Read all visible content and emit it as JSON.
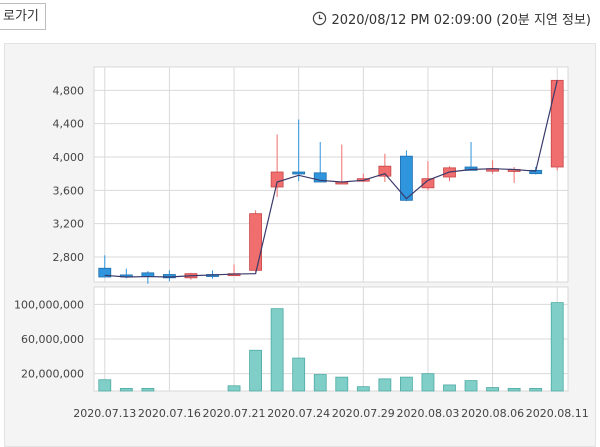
{
  "header": {
    "back_label": "로가기",
    "timestamp": "2020/08/12 PM 02:09:00 (20분 지연 정보)",
    "clock_icon": "clock-icon"
  },
  "colors": {
    "up": "#f06e6e",
    "down": "#2f95dc",
    "volume": "#7fcfc8",
    "ma_line": "#3a3a6a",
    "grid": "#d9d9d9"
  },
  "chart_data": [
    {
      "type": "candlestick",
      "title": "",
      "ylim": [
        2500,
        5080
      ],
      "y_ticks": [
        2800,
        3200,
        3600,
        4000,
        4400,
        4800
      ],
      "y_tick_labels": [
        "2,800",
        "3,200",
        "3,600",
        "4,000",
        "4,400",
        "4,800"
      ],
      "x_tick_labels": [
        "2020.07.13",
        "2020.07.16",
        "2020.07.21",
        "2020.07.24",
        "2020.07.29",
        "2020.08.03",
        "2020.08.06",
        "2020.08.11"
      ],
      "x_tick_indices": [
        0,
        3,
        6,
        9,
        12,
        15,
        18,
        21
      ],
      "series": [
        {
          "candles": [
            {
              "open": 2665,
              "high": 2820,
              "low": 2565,
              "close": 2560
            },
            {
              "open": 2585,
              "high": 2660,
              "low": 2545,
              "close": 2575
            },
            {
              "open": 2610,
              "high": 2630,
              "low": 2480,
              "close": 2565
            },
            {
              "open": 2590,
              "high": 2640,
              "low": 2510,
              "close": 2550
            },
            {
              "open": 2550,
              "high": 2610,
              "low": 2530,
              "close": 2600
            },
            {
              "open": 2590,
              "high": 2640,
              "low": 2540,
              "close": 2585
            },
            {
              "open": 2590,
              "high": 2710,
              "low": 2580,
              "close": 2600
            },
            {
              "open": 2640,
              "high": 3360,
              "low": 2620,
              "close": 3320
            },
            {
              "open": 3640,
              "high": 4270,
              "low": 3520,
              "close": 3820
            },
            {
              "open": 3820,
              "high": 4450,
              "low": 3710,
              "close": 3800
            },
            {
              "open": 3810,
              "high": 4180,
              "low": 3700,
              "close": 3700
            },
            {
              "open": 3700,
              "high": 4150,
              "low": 3690,
              "close": 3700
            },
            {
              "open": 3710,
              "high": 3800,
              "low": 3700,
              "close": 3740
            },
            {
              "open": 3770,
              "high": 4040,
              "low": 3700,
              "close": 3890
            },
            {
              "open": 4010,
              "high": 4080,
              "low": 3470,
              "close": 3480
            },
            {
              "open": 3630,
              "high": 3950,
              "low": 3600,
              "close": 3740
            },
            {
              "open": 3760,
              "high": 3890,
              "low": 3710,
              "close": 3870
            },
            {
              "open": 3880,
              "high": 4180,
              "low": 3850,
              "close": 3840
            },
            {
              "open": 3830,
              "high": 3960,
              "low": 3800,
              "close": 3860
            },
            {
              "open": 3850,
              "high": 3880,
              "low": 3690,
              "close": 3850
            },
            {
              "open": 3840,
              "high": 3880,
              "low": 3790,
              "close": 3800
            },
            {
              "open": 3880,
              "high": 4920,
              "low": 3840,
              "close": 4920
            }
          ],
          "moving_average": [
            2580,
            2560,
            2565,
            2560,
            2575,
            2585,
            2595,
            2600,
            3700,
            3780,
            3720,
            3700,
            3720,
            3800,
            3500,
            3720,
            3820,
            3850,
            3860,
            3850,
            3830,
            4920
          ]
        }
      ]
    },
    {
      "type": "bar",
      "title": "",
      "ylim": [
        0,
        120000000
      ],
      "y_ticks": [
        20000000,
        60000000,
        100000000
      ],
      "y_tick_labels": [
        "20,000,000",
        "60,000,000",
        "100,000,000"
      ],
      "x_tick_indices": [
        0,
        3,
        6,
        9,
        12,
        15,
        18,
        21
      ],
      "series": [
        {
          "values": [
            13000000,
            3000000,
            3000000,
            0,
            0,
            0,
            6000000,
            47000000,
            95000000,
            38000000,
            19000000,
            16000000,
            5000000,
            14000000,
            16000000,
            20000000,
            7000000,
            12000000,
            4000000,
            3000000,
            3000000,
            102000000
          ]
        }
      ]
    }
  ]
}
